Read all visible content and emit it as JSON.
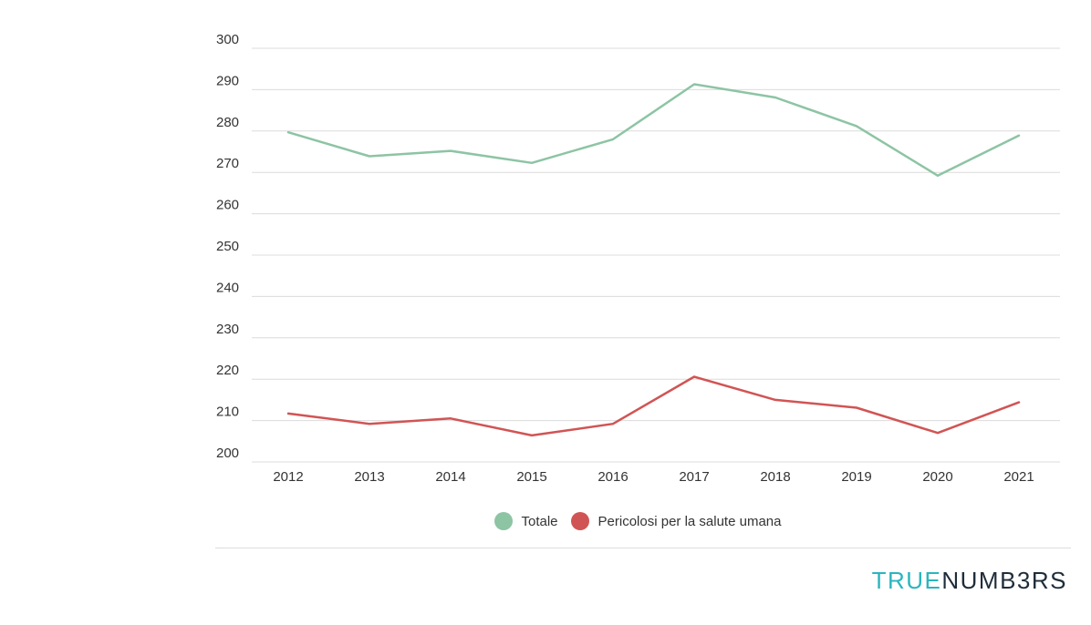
{
  "chart_data": {
    "type": "line",
    "title": "",
    "xlabel": "",
    "ylabel": "",
    "categories": [
      "2012",
      "2013",
      "2014",
      "2015",
      "2016",
      "2017",
      "2018",
      "2019",
      "2020",
      "2021"
    ],
    "ylim": [
      200,
      300
    ],
    "yticks": [
      "200",
      "210",
      "220",
      "230",
      "240",
      "250",
      "260",
      "270",
      "280",
      "290",
      "300"
    ],
    "grid": true,
    "legend_position": "bottom",
    "series": [
      {
        "name": "Totale",
        "color": "#8dc4a4",
        "values": [
          279.7,
          273.9,
          275.2,
          272.3,
          278.0,
          291.3,
          288.1,
          281.2,
          269.2,
          278.9
        ]
      },
      {
        "name": "Pericolosi per la salute umana",
        "color": "#d15454",
        "values": [
          211.7,
          209.2,
          210.5,
          206.4,
          209.2,
          220.6,
          215.0,
          213.1,
          207.0,
          214.4
        ]
      }
    ]
  },
  "brand": {
    "part1": "TRUE",
    "part2": "NUMB3RS",
    "color1": "#2bb5bd",
    "color2": "#1f2d3a"
  }
}
